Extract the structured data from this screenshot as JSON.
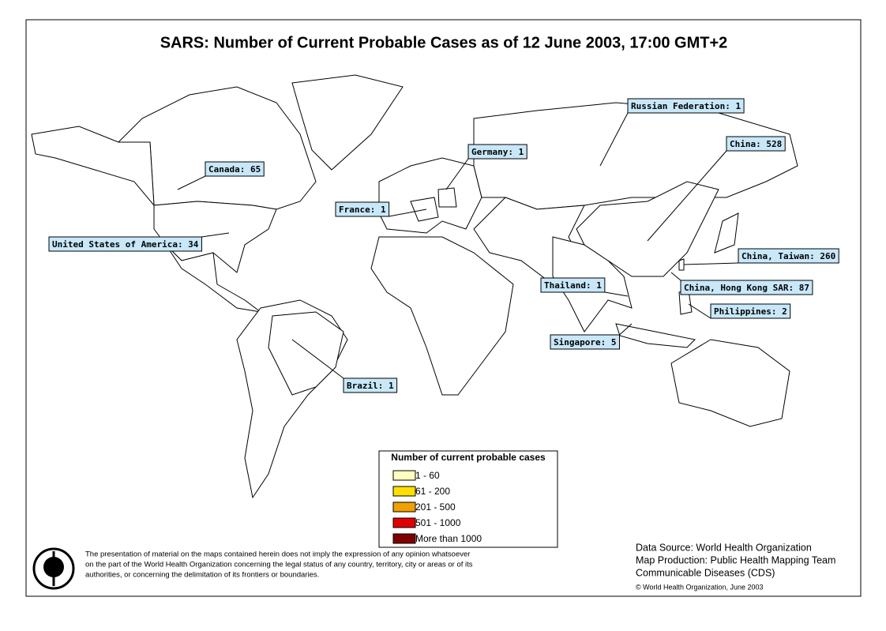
{
  "title": "SARS: Number of Current Probable Cases as of 12 June 2003, 17:00 GMT+2",
  "callouts": [
    {
      "text": "Russian Federation: 1"
    },
    {
      "text": "Germany: 1"
    },
    {
      "text": "China: 528"
    },
    {
      "text": "Canada: 65"
    },
    {
      "text": "France: 1"
    },
    {
      "text": "United States of America: 34"
    },
    {
      "text": "China, Taiwan: 260"
    },
    {
      "text": "Thailand: 1"
    },
    {
      "text": "China, Hong Kong SAR: 87"
    },
    {
      "text": "Philippines: 2"
    },
    {
      "text": "Singapore: 5"
    },
    {
      "text": "Brazil: 1"
    }
  ],
  "legend": {
    "title": "Number of current probable cases",
    "items": [
      {
        "label": "1 - 60",
        "color": "#ffffc0"
      },
      {
        "label": "61 - 200",
        "color": "#ffe000"
      },
      {
        "label": "201 - 500",
        "color": "#f0a000"
      },
      {
        "label": "501 - 1000",
        "color": "#e00000"
      },
      {
        "label": "More than 1000",
        "color": "#800000"
      }
    ]
  },
  "disclaimer": [
    "The presentation of material on the maps contained herein does not imply the expression of any opinion whatsoever",
    "on the part of the World Health Organization concerning the legal status of any country, territory, city or areas or of its",
    "authorities, or concerning the delimitation of its frontiers or boundaries."
  ],
  "credits": [
    "Data Source: World Health Organization",
    "Map Production: Public Health Mapping Team",
    "Communicable Diseases (CDS)"
  ],
  "copyright": "© World Health Organization, June 2003"
}
